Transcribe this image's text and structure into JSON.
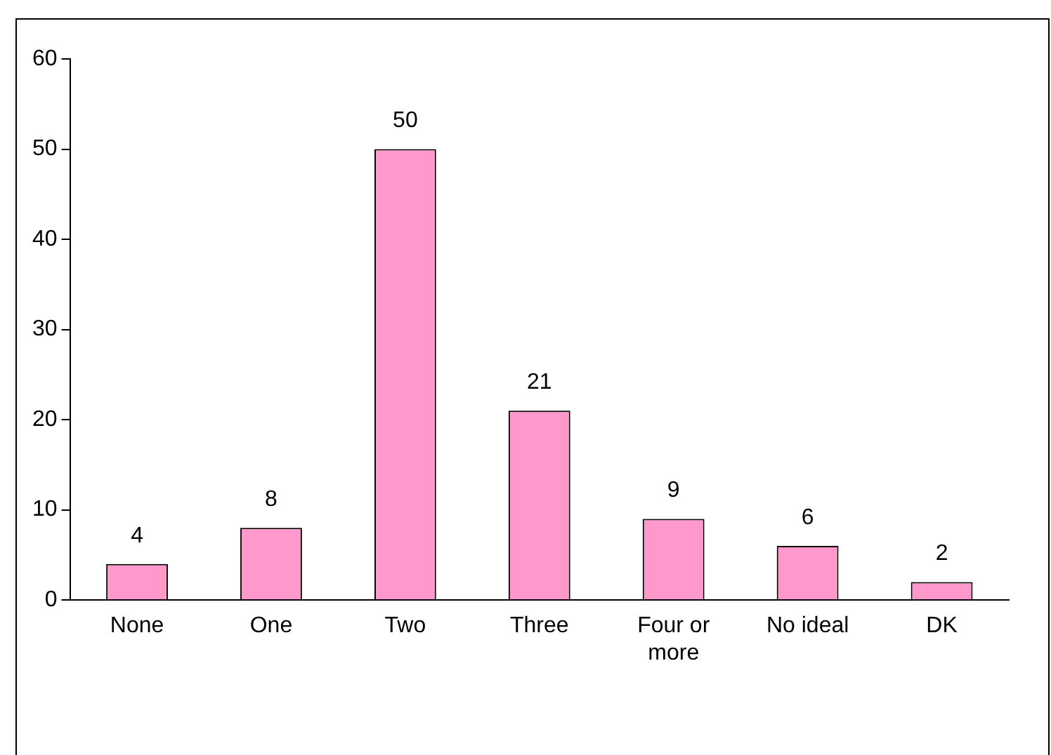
{
  "chart_data": {
    "type": "bar",
    "categories": [
      "None",
      "One",
      "Two",
      "Three",
      "Four or more",
      "No ideal",
      "DK"
    ],
    "values": [
      4,
      8,
      50,
      21,
      9,
      6,
      2
    ],
    "color": "#ff99cc",
    "ylim": [
      0,
      60
    ],
    "yticks": [
      0,
      10,
      20,
      30,
      40,
      50,
      60
    ],
    "grid": false,
    "legend": false,
    "data_labels": true
  }
}
